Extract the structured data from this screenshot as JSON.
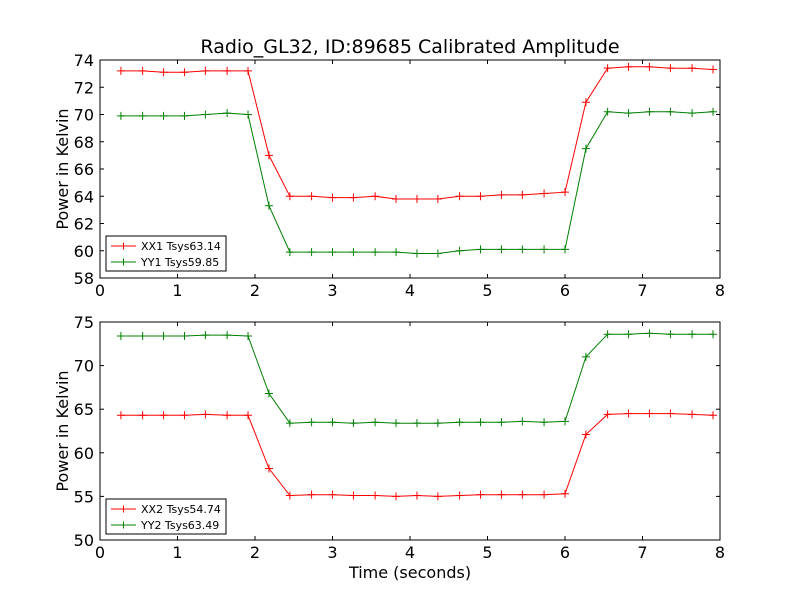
{
  "figure": {
    "title": "Radio_GL32, ID:89685 Calibrated Amplitude"
  },
  "chart_data": [
    {
      "type": "line",
      "title": "Radio_GL32, ID:89685 Calibrated Amplitude",
      "xlabel": "",
      "ylabel": "Power in Kelvin",
      "xlim": [
        0,
        8
      ],
      "ylim": [
        58,
        74
      ],
      "xticks": [
        0,
        1,
        2,
        3,
        4,
        5,
        6,
        7,
        8
      ],
      "yticks": [
        58,
        60,
        62,
        64,
        66,
        68,
        70,
        72,
        74
      ],
      "grid": false,
      "legend": "lower-left",
      "x": [
        0.27,
        0.55,
        0.82,
        1.09,
        1.36,
        1.64,
        1.91,
        2.18,
        2.45,
        2.73,
        3.0,
        3.27,
        3.55,
        3.82,
        4.09,
        4.36,
        4.64,
        4.91,
        5.18,
        5.45,
        5.73,
        6.0,
        6.27,
        6.55,
        6.82,
        7.09,
        7.36,
        7.64,
        7.91
      ],
      "series": [
        {
          "name": "XX1 Tsys63.14",
          "color": "#ff0000",
          "values": [
            73.2,
            73.2,
            73.1,
            73.1,
            73.2,
            73.2,
            73.2,
            67.0,
            64.0,
            64.0,
            63.9,
            63.9,
            64.0,
            63.8,
            63.8,
            63.8,
            64.0,
            64.0,
            64.1,
            64.1,
            64.2,
            64.3,
            70.9,
            73.4,
            73.5,
            73.5,
            73.4,
            73.4,
            73.3
          ]
        },
        {
          "name": "YY1 Tsys59.85",
          "color": "#008000",
          "values": [
            69.9,
            69.9,
            69.9,
            69.9,
            70.0,
            70.1,
            70.0,
            63.3,
            59.9,
            59.9,
            59.9,
            59.9,
            59.9,
            59.9,
            59.8,
            59.8,
            60.0,
            60.1,
            60.1,
            60.1,
            60.1,
            60.1,
            67.5,
            70.2,
            70.1,
            70.2,
            70.2,
            70.1,
            70.2
          ]
        }
      ]
    },
    {
      "type": "line",
      "title": "",
      "xlabel": "Time (seconds)",
      "ylabel": "Power in Kelvin",
      "xlim": [
        0,
        8
      ],
      "ylim": [
        50,
        75
      ],
      "xticks": [
        0,
        1,
        2,
        3,
        4,
        5,
        6,
        7,
        8
      ],
      "yticks": [
        50,
        55,
        60,
        65,
        70,
        75
      ],
      "grid": false,
      "legend": "lower-left",
      "x": [
        0.27,
        0.55,
        0.82,
        1.09,
        1.36,
        1.64,
        1.91,
        2.18,
        2.45,
        2.73,
        3.0,
        3.27,
        3.55,
        3.82,
        4.09,
        4.36,
        4.64,
        4.91,
        5.18,
        5.45,
        5.73,
        6.0,
        6.27,
        6.55,
        6.82,
        7.09,
        7.36,
        7.64,
        7.91
      ],
      "series": [
        {
          "name": "XX2 Tsys54.74",
          "color": "#ff0000",
          "values": [
            64.3,
            64.3,
            64.3,
            64.3,
            64.4,
            64.3,
            64.3,
            58.2,
            55.1,
            55.2,
            55.2,
            55.1,
            55.1,
            55.0,
            55.1,
            55.0,
            55.1,
            55.2,
            55.2,
            55.2,
            55.2,
            55.3,
            62.1,
            64.4,
            64.5,
            64.5,
            64.5,
            64.4,
            64.3
          ]
        },
        {
          "name": "YY2 Tsys63.49",
          "color": "#008000",
          "values": [
            73.4,
            73.4,
            73.4,
            73.4,
            73.5,
            73.5,
            73.4,
            66.8,
            63.4,
            63.5,
            63.5,
            63.4,
            63.5,
            63.4,
            63.4,
            63.4,
            63.5,
            63.5,
            63.5,
            63.6,
            63.5,
            63.6,
            71.0,
            73.6,
            73.6,
            73.7,
            73.6,
            73.6,
            73.6
          ]
        }
      ]
    }
  ]
}
